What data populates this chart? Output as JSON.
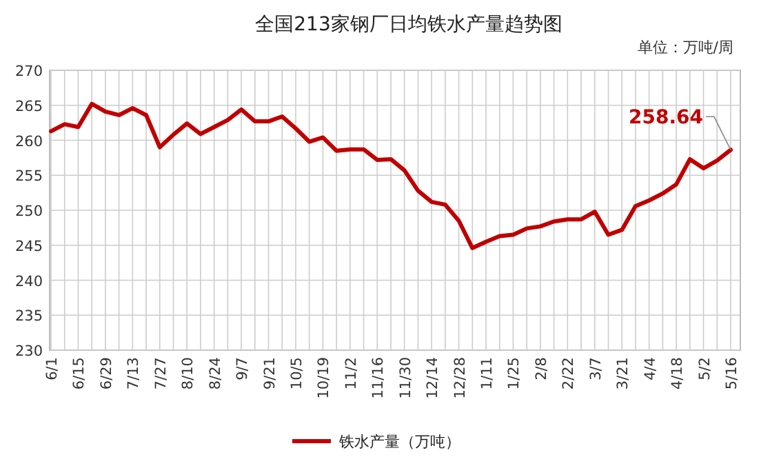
{
  "chart_data": {
    "type": "line",
    "title": "全国213家钢厂日均铁水产量趋势图",
    "annotations": [
      "单位：万吨/周",
      {
        "text": "258.64",
        "x": "5/16",
        "y": 258.64
      }
    ],
    "categories": [
      "6/1",
      null,
      "6/15",
      null,
      "6/29",
      null,
      "7/13",
      null,
      "7/27",
      null,
      "8/10",
      null,
      "8/24",
      null,
      "9/7",
      null,
      "9/21",
      null,
      "10/5",
      null,
      "10/19",
      null,
      "11/2",
      null,
      "11/16",
      null,
      "11/30",
      null,
      "12/14",
      null,
      "12/28",
      null,
      "1/11",
      null,
      "1/25",
      null,
      "2/8",
      null,
      "2/22",
      null,
      "3/7",
      null,
      "3/21",
      null,
      "4/4",
      null,
      "4/18",
      null,
      "5/2",
      null,
      "5/16"
    ],
    "series": [
      {
        "name": "铁水产量（万吨）",
        "color": "#c00000",
        "values": [
          261.3,
          262.3,
          261.9,
          265.2,
          264.1,
          263.6,
          264.6,
          263.6,
          259.0,
          260.8,
          262.4,
          260.9,
          261.9,
          262.9,
          264.4,
          262.7,
          262.7,
          263.4,
          261.7,
          259.8,
          260.4,
          258.5,
          258.7,
          258.7,
          257.2,
          257.3,
          255.7,
          252.8,
          251.2,
          250.8,
          248.5,
          244.6,
          245.5,
          246.3,
          246.5,
          247.4,
          247.7,
          248.4,
          248.7,
          248.7,
          249.8,
          246.5,
          247.2,
          250.6,
          251.4,
          252.4,
          253.7,
          257.3,
          256.0,
          257.1,
          258.64
        ]
      }
    ],
    "ylim": [
      230,
      270
    ],
    "yticks": [
      230,
      235,
      240,
      245,
      250,
      255,
      260,
      265,
      270
    ],
    "grid": true,
    "legend": "bottom",
    "marker": "none",
    "line_style": "solid"
  }
}
